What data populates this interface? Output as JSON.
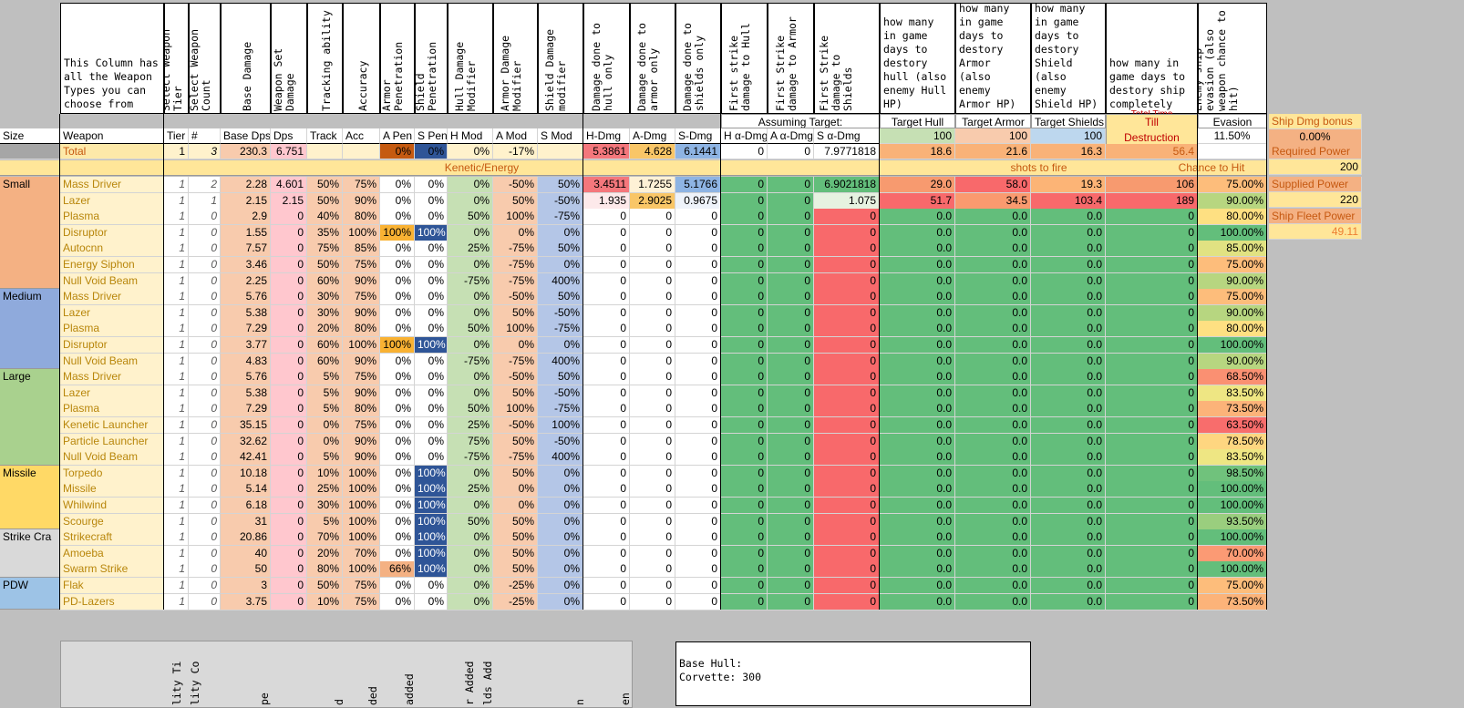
{
  "headers": {
    "weapon_types": "This Column has all the Weapon Types you can choose from",
    "select_tier": "Select Weapon Tier",
    "select_count": "Select Weapon Count",
    "base_damage": "Base Damage",
    "weapon_set_damage": "Weapon Set Damage",
    "tracking": "Tracking ability",
    "accuracy": "Accuracy",
    "armor_pen": "Armor Penetration",
    "shield_pen": "Shield Penetration",
    "hull_mod": "Hull Damage Modifier",
    "armor_mod": "Armor Damage Modifier",
    "shield_mod": "Shield Damage modifier",
    "dmg_hull": "Damage done to hull only",
    "dmg_armor": "Damage done to armor only",
    "dmg_shield": "Damage done to shields only",
    "fs_hull": "First strike damage to Hull",
    "fs_armor": "First Strike damage to Armor",
    "fs_shield": "First Strike damage to Shields",
    "days_hull": "how many in game days to destory hull (also enemy Hull HP)",
    "days_armor": "how many in game days to destory Armor (also enemy Armor HP)",
    "days_shield": "how many in game days to destory Shield (also enemy Shield HP)",
    "days_ship": "how many in game days to destory ship completely",
    "evasion": "Enemy ship evasion (also weapon chance to hit)"
  },
  "assuming": "Assuming Target:",
  "target_labels": {
    "hull": "Target Hull",
    "armor": "Target Armor",
    "shields": "Target Shields",
    "evasion": "Evasion",
    "till": "Till",
    "destruction": "Destruction",
    "total_time": "Total Time"
  },
  "col_labels": [
    "Size",
    "Weapon",
    "Tier",
    "#",
    "Base Dps",
    "Dps",
    "Track",
    "Acc",
    "A Pen",
    "S Pen",
    "H Mod",
    "A Mod",
    "S Mod",
    "H-Dmg",
    "A-Dmg",
    "S-Dmg",
    "H α-Dmg",
    "A α-Dmg",
    "S α-Dmg"
  ],
  "target_values": {
    "hull": "100",
    "armor": "100",
    "shields": "100",
    "evasion": "11.50%"
  },
  "total_row": {
    "label": "Total",
    "tier": "1",
    "count": "3",
    "base": "230.3",
    "dps": "6.751",
    "apen": "0%",
    "spen": "0%",
    "hmod": "0%",
    "amod": "-17%",
    "hdmg": "5.3861",
    "admg": "4.628",
    "sdmg": "6.1441",
    "ha": "0",
    "aa": "0",
    "sa": "7.9771818",
    "dh": "18.6",
    "da": "21.6",
    "ds": "16.3",
    "dt": "56.4"
  },
  "section_band": {
    "left": "Kenetic/Energy",
    "mid": "shots to fire",
    "right": "Chance to Hit"
  },
  "side_panel": [
    {
      "label": "Ship Dmg bonus",
      "value": "0.00%"
    },
    {
      "label": "Required Power",
      "value": "200"
    },
    {
      "label": "Supplied Power",
      "value": "220"
    },
    {
      "label": "Ship Fleet Power",
      "value": "49.11"
    }
  ],
  "rows": [
    {
      "size": "Small",
      "w": "Mass Driver",
      "t": "1",
      "n": "2",
      "b": "2.28",
      "d": "4.601",
      "tr": "50%",
      "ac": "75%",
      "ap": "0%",
      "sp": "0%",
      "hm": "0%",
      "am": "-50%",
      "sm": "50%",
      "hd": "3.4511",
      "ad": "1.7255",
      "sd": "5.1766",
      "ha": "0",
      "aa": "0",
      "sa": "6.9021818",
      "dh": "29.0",
      "da": "58.0",
      "ds": "19.3",
      "dt": "106",
      "ev": "75.00%"
    },
    {
      "size": "",
      "w": "Lazer",
      "t": "1",
      "n": "1",
      "b": "2.15",
      "d": "2.15",
      "tr": "50%",
      "ac": "90%",
      "ap": "0%",
      "sp": "0%",
      "hm": "0%",
      "am": "50%",
      "sm": "-50%",
      "hd": "1.935",
      "ad": "2.9025",
      "sd": "0.9675",
      "ha": "0",
      "aa": "0",
      "sa": "1.075",
      "dh": "51.7",
      "da": "34.5",
      "ds": "103.4",
      "dt": "189",
      "ev": "90.00%"
    },
    {
      "size": "",
      "w": "Plasma",
      "t": "1",
      "n": "0",
      "b": "2.9",
      "d": "0",
      "tr": "40%",
      "ac": "80%",
      "ap": "0%",
      "sp": "0%",
      "hm": "50%",
      "am": "100%",
      "sm": "-75%",
      "hd": "0",
      "ad": "0",
      "sd": "0",
      "ha": "0",
      "aa": "0",
      "sa": "0",
      "dh": "0.0",
      "da": "0.0",
      "ds": "0.0",
      "dt": "0",
      "ev": "80.00%"
    },
    {
      "size": "",
      "w": "Disruptor",
      "t": "1",
      "n": "0",
      "b": "1.55",
      "d": "0",
      "tr": "35%",
      "ac": "100%",
      "ap": "100%",
      "sp": "100%",
      "hm": "0%",
      "am": "0%",
      "sm": "0%",
      "hd": "0",
      "ad": "0",
      "sd": "0",
      "ha": "0",
      "aa": "0",
      "sa": "0",
      "dh": "0.0",
      "da": "0.0",
      "ds": "0.0",
      "dt": "0",
      "ev": "100.00%"
    },
    {
      "size": "",
      "w": "Autocnn",
      "t": "1",
      "n": "0",
      "b": "7.57",
      "d": "0",
      "tr": "75%",
      "ac": "85%",
      "ap": "0%",
      "sp": "0%",
      "hm": "25%",
      "am": "-75%",
      "sm": "50%",
      "hd": "0",
      "ad": "0",
      "sd": "0",
      "ha": "0",
      "aa": "0",
      "sa": "0",
      "dh": "0.0",
      "da": "0.0",
      "ds": "0.0",
      "dt": "0",
      "ev": "85.00%"
    },
    {
      "size": "",
      "w": "Energy Siphon",
      "t": "1",
      "n": "0",
      "b": "3.46",
      "d": "0",
      "tr": "50%",
      "ac": "75%",
      "ap": "0%",
      "sp": "0%",
      "hm": "0%",
      "am": "-75%",
      "sm": "0%",
      "hd": "0",
      "ad": "0",
      "sd": "0",
      "ha": "0",
      "aa": "0",
      "sa": "0",
      "dh": "0.0",
      "da": "0.0",
      "ds": "0.0",
      "dt": "0",
      "ev": "75.00%"
    },
    {
      "size": "",
      "w": "Null Void Beam",
      "t": "1",
      "n": "0",
      "b": "2.25",
      "d": "0",
      "tr": "60%",
      "ac": "90%",
      "ap": "0%",
      "sp": "0%",
      "hm": "-75%",
      "am": "-75%",
      "sm": "400%",
      "hd": "0",
      "ad": "0",
      "sd": "0",
      "ha": "0",
      "aa": "0",
      "sa": "0",
      "dh": "0.0",
      "da": "0.0",
      "ds": "0.0",
      "dt": "0",
      "ev": "90.00%"
    },
    {
      "size": "Medium",
      "w": "Mass Driver",
      "t": "1",
      "n": "0",
      "b": "5.76",
      "d": "0",
      "tr": "30%",
      "ac": "75%",
      "ap": "0%",
      "sp": "0%",
      "hm": "0%",
      "am": "-50%",
      "sm": "50%",
      "hd": "0",
      "ad": "0",
      "sd": "0",
      "ha": "0",
      "aa": "0",
      "sa": "0",
      "dh": "0.0",
      "da": "0.0",
      "ds": "0.0",
      "dt": "0",
      "ev": "75.00%"
    },
    {
      "size": "",
      "w": "Lazer",
      "t": "1",
      "n": "0",
      "b": "5.38",
      "d": "0",
      "tr": "30%",
      "ac": "90%",
      "ap": "0%",
      "sp": "0%",
      "hm": "0%",
      "am": "50%",
      "sm": "-50%",
      "hd": "0",
      "ad": "0",
      "sd": "0",
      "ha": "0",
      "aa": "0",
      "sa": "0",
      "dh": "0.0",
      "da": "0.0",
      "ds": "0.0",
      "dt": "0",
      "ev": "90.00%"
    },
    {
      "size": "",
      "w": "Plasma",
      "t": "1",
      "n": "0",
      "b": "7.29",
      "d": "0",
      "tr": "20%",
      "ac": "80%",
      "ap": "0%",
      "sp": "0%",
      "hm": "50%",
      "am": "100%",
      "sm": "-75%",
      "hd": "0",
      "ad": "0",
      "sd": "0",
      "ha": "0",
      "aa": "0",
      "sa": "0",
      "dh": "0.0",
      "da": "0.0",
      "ds": "0.0",
      "dt": "0",
      "ev": "80.00%"
    },
    {
      "size": "",
      "w": "Disruptor",
      "t": "1",
      "n": "0",
      "b": "3.77",
      "d": "0",
      "tr": "60%",
      "ac": "100%",
      "ap": "100%",
      "sp": "100%",
      "hm": "0%",
      "am": "0%",
      "sm": "0%",
      "hd": "0",
      "ad": "0",
      "sd": "0",
      "ha": "0",
      "aa": "0",
      "sa": "0",
      "dh": "0.0",
      "da": "0.0",
      "ds": "0.0",
      "dt": "0",
      "ev": "100.00%"
    },
    {
      "size": "",
      "w": "Null Void Beam",
      "t": "1",
      "n": "0",
      "b": "4.83",
      "d": "0",
      "tr": "60%",
      "ac": "90%",
      "ap": "0%",
      "sp": "0%",
      "hm": "-75%",
      "am": "-75%",
      "sm": "400%",
      "hd": "0",
      "ad": "0",
      "sd": "0",
      "ha": "0",
      "aa": "0",
      "sa": "0",
      "dh": "0.0",
      "da": "0.0",
      "ds": "0.0",
      "dt": "0",
      "ev": "90.00%"
    },
    {
      "size": "Large",
      "w": "Mass Driver",
      "t": "1",
      "n": "0",
      "b": "5.76",
      "d": "0",
      "tr": "5%",
      "ac": "75%",
      "ap": "0%",
      "sp": "0%",
      "hm": "0%",
      "am": "-50%",
      "sm": "50%",
      "hd": "0",
      "ad": "0",
      "sd": "0",
      "ha": "0",
      "aa": "0",
      "sa": "0",
      "dh": "0.0",
      "da": "0.0",
      "ds": "0.0",
      "dt": "0",
      "ev": "68.50%"
    },
    {
      "size": "",
      "w": "Lazer",
      "t": "1",
      "n": "0",
      "b": "5.38",
      "d": "0",
      "tr": "5%",
      "ac": "90%",
      "ap": "0%",
      "sp": "0%",
      "hm": "0%",
      "am": "50%",
      "sm": "-50%",
      "hd": "0",
      "ad": "0",
      "sd": "0",
      "ha": "0",
      "aa": "0",
      "sa": "0",
      "dh": "0.0",
      "da": "0.0",
      "ds": "0.0",
      "dt": "0",
      "ev": "83.50%"
    },
    {
      "size": "",
      "w": "Plasma",
      "t": "1",
      "n": "0",
      "b": "7.29",
      "d": "0",
      "tr": "5%",
      "ac": "80%",
      "ap": "0%",
      "sp": "0%",
      "hm": "50%",
      "am": "100%",
      "sm": "-75%",
      "hd": "0",
      "ad": "0",
      "sd": "0",
      "ha": "0",
      "aa": "0",
      "sa": "0",
      "dh": "0.0",
      "da": "0.0",
      "ds": "0.0",
      "dt": "0",
      "ev": "73.50%"
    },
    {
      "size": "",
      "w": "Kenetic Launcher",
      "t": "1",
      "n": "0",
      "b": "35.15",
      "d": "0",
      "tr": "0%",
      "ac": "75%",
      "ap": "0%",
      "sp": "0%",
      "hm": "25%",
      "am": "-50%",
      "sm": "100%",
      "hd": "0",
      "ad": "0",
      "sd": "0",
      "ha": "0",
      "aa": "0",
      "sa": "0",
      "dh": "0.0",
      "da": "0.0",
      "ds": "0.0",
      "dt": "0",
      "ev": "63.50%"
    },
    {
      "size": "",
      "w": "Particle Launcher",
      "t": "1",
      "n": "0",
      "b": "32.62",
      "d": "0",
      "tr": "0%",
      "ac": "90%",
      "ap": "0%",
      "sp": "0%",
      "hm": "75%",
      "am": "50%",
      "sm": "-50%",
      "hd": "0",
      "ad": "0",
      "sd": "0",
      "ha": "0",
      "aa": "0",
      "sa": "0",
      "dh": "0.0",
      "da": "0.0",
      "ds": "0.0",
      "dt": "0",
      "ev": "78.50%"
    },
    {
      "size": "",
      "w": "Null Void Beam",
      "t": "1",
      "n": "0",
      "b": "42.41",
      "d": "0",
      "tr": "5%",
      "ac": "90%",
      "ap": "0%",
      "sp": "0%",
      "hm": "-75%",
      "am": "-75%",
      "sm": "400%",
      "hd": "0",
      "ad": "0",
      "sd": "0",
      "ha": "0",
      "aa": "0",
      "sa": "0",
      "dh": "0.0",
      "da": "0.0",
      "ds": "0.0",
      "dt": "0",
      "ev": "83.50%"
    },
    {
      "size": "Missile",
      "w": "Torpedo",
      "t": "1",
      "n": "0",
      "b": "10.18",
      "d": "0",
      "tr": "10%",
      "ac": "100%",
      "ap": "0%",
      "sp": "100%",
      "hm": "0%",
      "am": "50%",
      "sm": "0%",
      "hd": "0",
      "ad": "0",
      "sd": "0",
      "ha": "0",
      "aa": "0",
      "sa": "0",
      "dh": "0.0",
      "da": "0.0",
      "ds": "0.0",
      "dt": "0",
      "ev": "98.50%"
    },
    {
      "size": "",
      "w": "Missile",
      "t": "1",
      "n": "0",
      "b": "5.14",
      "d": "0",
      "tr": "25%",
      "ac": "100%",
      "ap": "0%",
      "sp": "100%",
      "hm": "25%",
      "am": "0%",
      "sm": "0%",
      "hd": "0",
      "ad": "0",
      "sd": "0",
      "ha": "0",
      "aa": "0",
      "sa": "0",
      "dh": "0.0",
      "da": "0.0",
      "ds": "0.0",
      "dt": "0",
      "ev": "100.00%"
    },
    {
      "size": "",
      "w": "Whilwind",
      "t": "1",
      "n": "0",
      "b": "6.18",
      "d": "0",
      "tr": "30%",
      "ac": "100%",
      "ap": "0%",
      "sp": "100%",
      "hm": "0%",
      "am": "0%",
      "sm": "0%",
      "hd": "0",
      "ad": "0",
      "sd": "0",
      "ha": "0",
      "aa": "0",
      "sa": "0",
      "dh": "0.0",
      "da": "0.0",
      "ds": "0.0",
      "dt": "0",
      "ev": "100.00%"
    },
    {
      "size": "",
      "w": "Scourge",
      "t": "1",
      "n": "0",
      "b": "31",
      "d": "0",
      "tr": "5%",
      "ac": "100%",
      "ap": "0%",
      "sp": "100%",
      "hm": "50%",
      "am": "50%",
      "sm": "0%",
      "hd": "0",
      "ad": "0",
      "sd": "0",
      "ha": "0",
      "aa": "0",
      "sa": "0",
      "dh": "0.0",
      "da": "0.0",
      "ds": "0.0",
      "dt": "0",
      "ev": "93.50%"
    },
    {
      "size": "Strike Cra",
      "w": "Strikecraft",
      "t": "1",
      "n": "0",
      "b": "20.86",
      "d": "0",
      "tr": "70%",
      "ac": "100%",
      "ap": "0%",
      "sp": "100%",
      "hm": "0%",
      "am": "50%",
      "sm": "0%",
      "hd": "0",
      "ad": "0",
      "sd": "0",
      "ha": "0",
      "aa": "0",
      "sa": "0",
      "dh": "0.0",
      "da": "0.0",
      "ds": "0.0",
      "dt": "0",
      "ev": "100.00%"
    },
    {
      "size": "",
      "w": "Amoeba",
      "t": "1",
      "n": "0",
      "b": "40",
      "d": "0",
      "tr": "20%",
      "ac": "70%",
      "ap": "0%",
      "sp": "100%",
      "hm": "0%",
      "am": "50%",
      "sm": "0%",
      "hd": "0",
      "ad": "0",
      "sd": "0",
      "ha": "0",
      "aa": "0",
      "sa": "0",
      "dh": "0.0",
      "da": "0.0",
      "ds": "0.0",
      "dt": "0",
      "ev": "70.00%"
    },
    {
      "size": "",
      "w": "Swarm Strike",
      "t": "1",
      "n": "0",
      "b": "50",
      "d": "0",
      "tr": "80%",
      "ac": "100%",
      "ap": "66%",
      "sp": "100%",
      "hm": "0%",
      "am": "50%",
      "sm": "0%",
      "hd": "0",
      "ad": "0",
      "sd": "0",
      "ha": "0",
      "aa": "0",
      "sa": "0",
      "dh": "0.0",
      "da": "0.0",
      "ds": "0.0",
      "dt": "0",
      "ev": "100.00%"
    },
    {
      "size": "PDW",
      "w": "Flak",
      "t": "1",
      "n": "0",
      "b": "3",
      "d": "0",
      "tr": "50%",
      "ac": "75%",
      "ap": "0%",
      "sp": "0%",
      "hm": "0%",
      "am": "-25%",
      "sm": "0%",
      "hd": "0",
      "ad": "0",
      "sd": "0",
      "ha": "0",
      "aa": "0",
      "sa": "0",
      "dh": "0.0",
      "da": "0.0",
      "ds": "0.0",
      "dt": "0",
      "ev": "75.00%"
    },
    {
      "size": "",
      "w": "PD-Lazers",
      "t": "1",
      "n": "0",
      "b": "3.75",
      "d": "0",
      "tr": "10%",
      "ac": "75%",
      "ap": "0%",
      "sp": "0%",
      "hm": "0%",
      "am": "-25%",
      "sm": "0%",
      "hd": "0",
      "ad": "0",
      "sd": "0",
      "ha": "0",
      "aa": "0",
      "sa": "0",
      "dh": "0.0",
      "da": "0.0",
      "ds": "0.0",
      "dt": "0",
      "ev": "73.50%"
    }
  ],
  "lower_headers": [
    "lity Ti",
    "lity Co",
    "pe",
    "d",
    "ded",
    "added",
    "r Added",
    "lds Add",
    "n",
    "en"
  ],
  "base_hull_note": [
    "Base Hull:",
    "Corvette: 300"
  ]
}
